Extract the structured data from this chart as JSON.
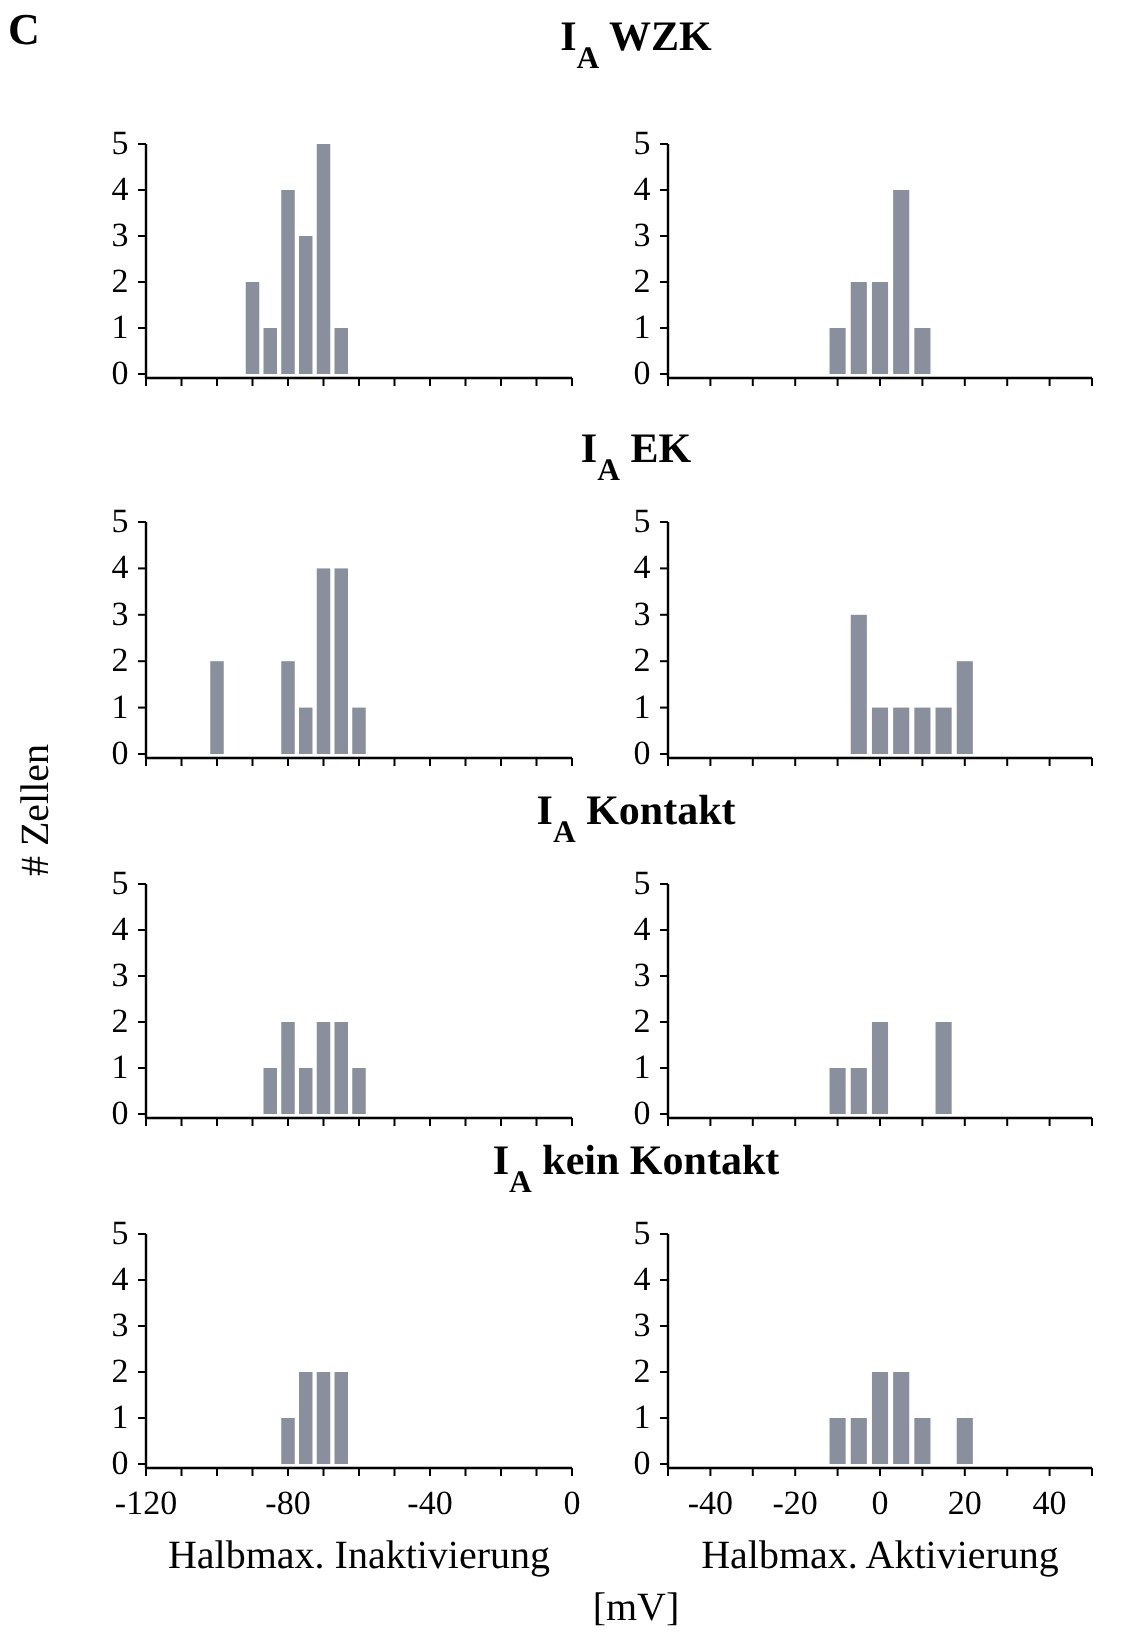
{
  "chart_data": [
    {
      "type": "histogram",
      "title": "I$_{A}$ WZK",
      "annotations": [
        "C"
      ],
      "bins": [
        -92.5,
        -87.5,
        -82.5,
        -77.5,
        -72.5,
        -67.5,
        -62.5
      ],
      "values": [
        2,
        1,
        4,
        3,
        5,
        1
      ],
      "color": "#8a8f9e",
      "xlim": [
        -120,
        0
      ],
      "xticks": [
        -120,
        {
          "value": -110,
          "label": null
        },
        {
          "value": -100,
          "label": null
        },
        {
          "value": -90,
          "label": null
        },
        -80,
        {
          "value": -70,
          "label": null
        },
        {
          "value": -60,
          "label": null
        },
        {
          "value": -50,
          "label": null
        },
        -40,
        {
          "value": -30,
          "label": null
        },
        {
          "value": -20,
          "label": null
        },
        {
          "value": -10,
          "label": null
        },
        0
      ],
      "ylim": [
        0,
        5
      ],
      "yticks": [
        0,
        1,
        2,
        3,
        4,
        5
      ],
      "tick_labels": "y"
    },
    {
      "type": "histogram",
      "bins": [
        -12.5,
        -7.5,
        -2.5,
        2.5,
        7.5,
        12.5
      ],
      "values": [
        1,
        2,
        2,
        4,
        1
      ],
      "color": "#8a8f9e",
      "xlim": [
        -50,
        50
      ],
      "xticks": [
        {
          "value": -50,
          "label": null
        },
        -40,
        {
          "value": -30,
          "label": null
        },
        -20,
        {
          "value": -10,
          "label": null
        },
        0,
        {
          "value": 10,
          "label": null
        },
        20,
        {
          "value": 30,
          "label": null
        },
        40,
        {
          "value": 50,
          "label": null
        }
      ],
      "ylim": [
        0,
        5
      ],
      "yticks": [
        0,
        1,
        2,
        3,
        4,
        5
      ],
      "tick_labels": "y"
    },
    {
      "type": "histogram",
      "title": "I$_{A}$ EK",
      "bins": [
        -102.5,
        -97.5,
        -92.5,
        -87.5,
        -82.5,
        -77.5,
        -72.5,
        -67.5,
        -62.5,
        -57.5
      ],
      "values": [
        2,
        0,
        0,
        0,
        2,
        1,
        4,
        4,
        1
      ],
      "color": "#8a8f9e",
      "xlim": [
        -120,
        0
      ],
      "xticks": [
        -120,
        {
          "value": -110,
          "label": null
        },
        {
          "value": -100,
          "label": null
        },
        {
          "value": -90,
          "label": null
        },
        -80,
        {
          "value": -70,
          "label": null
        },
        {
          "value": -60,
          "label": null
        },
        {
          "value": -50,
          "label": null
        },
        -40,
        {
          "value": -30,
          "label": null
        },
        {
          "value": -20,
          "label": null
        },
        {
          "value": -10,
          "label": null
        },
        0
      ],
      "ylim": [
        0,
        5
      ],
      "yticks": [
        0,
        1,
        2,
        3,
        4,
        5
      ],
      "tick_labels": "y",
      "ylabel": "# Zellen"
    },
    {
      "type": "histogram",
      "bins": [
        -7.5,
        -2.5,
        2.5,
        7.5,
        12.5,
        17.5,
        22.5
      ],
      "values": [
        3,
        1,
        1,
        1,
        1,
        2
      ],
      "color": "#8a8f9e",
      "xlim": [
        -50,
        50
      ],
      "xticks": [
        {
          "value": -50,
          "label": null
        },
        -40,
        {
          "value": -30,
          "label": null
        },
        -20,
        {
          "value": -10,
          "label": null
        },
        0,
        {
          "value": 10,
          "label": null
        },
        20,
        {
          "value": 30,
          "label": null
        },
        40,
        {
          "value": 50,
          "label": null
        }
      ],
      "ylim": [
        0,
        5
      ],
      "yticks": [
        0,
        1,
        2,
        3,
        4,
        5
      ],
      "tick_labels": "y"
    },
    {
      "type": "histogram",
      "title": "I$_{A}$ Kontakt",
      "bins": [
        -87.5,
        -82.5,
        -77.5,
        -72.5,
        -67.5,
        -62.5,
        -57.5
      ],
      "values": [
        1,
        2,
        1,
        2,
        2,
        1
      ],
      "color": "#8a8f9e",
      "xlim": [
        -120,
        0
      ],
      "xticks": [
        -120,
        {
          "value": -110,
          "label": null
        },
        {
          "value": -100,
          "label": null
        },
        {
          "value": -90,
          "label": null
        },
        -80,
        {
          "value": -70,
          "label": null
        },
        {
          "value": -60,
          "label": null
        },
        {
          "value": -50,
          "label": null
        },
        -40,
        {
          "value": -30,
          "label": null
        },
        {
          "value": -20,
          "label": null
        },
        {
          "value": -10,
          "label": null
        },
        0
      ],
      "ylim": [
        0,
        5
      ],
      "yticks": [
        0,
        1,
        2,
        3,
        4,
        5
      ],
      "tick_labels": "y"
    },
    {
      "type": "histogram",
      "bins": [
        -12.5,
        -7.5,
        -2.5,
        2.5,
        7.5,
        12.5,
        17.5
      ],
      "values": [
        1,
        1,
        2,
        0,
        0,
        2
      ],
      "color": "#8a8f9e",
      "xlim": [
        -50,
        50
      ],
      "xticks": [
        {
          "value": -50,
          "label": null
        },
        -40,
        {
          "value": -30,
          "label": null
        },
        -20,
        {
          "value": -10,
          "label": null
        },
        0,
        {
          "value": 10,
          "label": null
        },
        20,
        {
          "value": 30,
          "label": null
        },
        40,
        {
          "value": 50,
          "label": null
        }
      ],
      "ylim": [
        0,
        5
      ],
      "yticks": [
        0,
        1,
        2,
        3,
        4,
        5
      ],
      "tick_labels": "y"
    },
    {
      "type": "histogram",
      "title": "I$_{A}$ kein Kontakt",
      "xlabel": "Halbmax. Inaktivierung",
      "annotations": [
        "[mV]"
      ],
      "bins": [
        -82.5,
        -77.5,
        -72.5,
        -67.5,
        -62.5
      ],
      "values": [
        1,
        2,
        2,
        2
      ],
      "color": "#8a8f9e",
      "xlim": [
        -120,
        0
      ],
      "xticks": [
        -120,
        {
          "value": -110,
          "label": null
        },
        {
          "value": -100,
          "label": null
        },
        {
          "value": -90,
          "label": null
        },
        -80,
        {
          "value": -70,
          "label": null
        },
        {
          "value": -60,
          "label": null
        },
        {
          "value": -50,
          "label": null
        },
        -40,
        {
          "value": -30,
          "label": null
        },
        {
          "value": -20,
          "label": null
        },
        {
          "value": -10,
          "label": null
        },
        0
      ],
      "ylim": [
        0,
        5
      ],
      "yticks": [
        0,
        1,
        2,
        3,
        4,
        5
      ]
    },
    {
      "type": "histogram",
      "xlabel": "Halbmax. Aktivierung",
      "bins": [
        -12.5,
        -7.5,
        -2.5,
        2.5,
        7.5,
        12.5,
        17.5,
        22.5
      ],
      "values": [
        1,
        1,
        2,
        2,
        1,
        0,
        1
      ],
      "color": "#8a8f9e",
      "xlim": [
        -50,
        50
      ],
      "xticks": [
        {
          "value": -50,
          "label": null
        },
        -40,
        {
          "value": -30,
          "label": null
        },
        -20,
        {
          "value": -10,
          "label": null
        },
        0,
        {
          "value": 10,
          "label": null
        },
        20,
        {
          "value": 30,
          "label": null
        },
        40,
        {
          "value": 50,
          "label": null
        }
      ],
      "ylim": [
        0,
        5
      ],
      "yticks": [
        0,
        1,
        2,
        3,
        4,
        5
      ]
    }
  ]
}
